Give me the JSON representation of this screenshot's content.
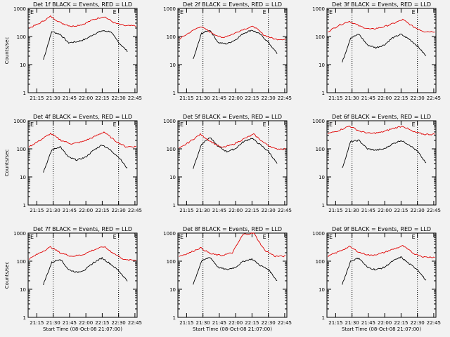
{
  "colors": {
    "background": "#f2f2f2",
    "events": "#000000",
    "lld": "#e00000",
    "axes": "#000000"
  },
  "chart_data": [
    {
      "type": "line",
      "title": "Det 1f BLACK = Events, RED = LLD",
      "xlabel": "",
      "ylabel": "Counts/sec",
      "yscale": "log",
      "ylim": [
        1,
        1000
      ],
      "x_ticks": [
        "21:15",
        "21:30",
        "21:45",
        "22:00",
        "22:15",
        "22:30",
        "22:45"
      ],
      "y_ticks": [
        "1",
        "10",
        "100",
        "1000"
      ],
      "markers": [
        "21:30",
        "22:30"
      ],
      "flags": [
        "E",
        "E"
      ],
      "series": [
        {
          "values": [
            15,
            150,
            120,
            60,
            65,
            80,
            120,
            160,
            150,
            60,
            30
          ]
        },
        {
          "values": [
            200,
            300,
            520,
            300,
            230,
            270,
            400,
            520,
            300,
            240,
            240
          ]
        }
      ]
    },
    {
      "type": "line",
      "title": "Det 2f BLACK = Events, RED = LLD",
      "xlabel": "",
      "ylabel": "",
      "yscale": "log",
      "ylim": [
        1,
        1000
      ],
      "x_ticks": [
        "21:15",
        "21:30",
        "21:45",
        "22:00",
        "22:15",
        "22:30",
        "22:45"
      ],
      "y_ticks": [
        "1",
        "10",
        "100",
        "1000"
      ],
      "markers": [
        "21:30",
        "22:30"
      ],
      "flags": [
        "E",
        "E"
      ],
      "series": [
        {
          "values": [
            15,
            130,
            170,
            60,
            55,
            75,
            130,
            170,
            120,
            60,
            25
          ]
        },
        {
          "values": [
            80,
            140,
            230,
            140,
            90,
            120,
            180,
            230,
            110,
            80,
            80
          ]
        }
      ]
    },
    {
      "type": "line",
      "title": "Det 3f BLACK = Events, RED = LLD",
      "xlabel": "",
      "ylabel": "",
      "yscale": "log",
      "ylim": [
        1,
        1000
      ],
      "x_ticks": [
        "21:15",
        "21:30",
        "21:45",
        "22:00",
        "22:15",
        "22:30",
        "22:45"
      ],
      "y_ticks": [
        "1",
        "10",
        "100",
        "1000"
      ],
      "markers": [
        "21:30",
        "22:30"
      ],
      "flags": [
        "E",
        "E"
      ],
      "series": [
        {
          "values": [
            12,
            90,
            120,
            50,
            40,
            50,
            90,
            120,
            80,
            45,
            20
          ]
        },
        {
          "values": [
            150,
            250,
            350,
            230,
            180,
            210,
            280,
            400,
            220,
            150,
            150
          ]
        }
      ]
    },
    {
      "type": "line",
      "title": "Det 4f BLACK = Events, RED = LLD",
      "xlabel": "",
      "ylabel": "Counts/sec",
      "yscale": "log",
      "ylim": [
        1,
        1000
      ],
      "x_ticks": [
        "21:15",
        "21:30",
        "21:45",
        "22:00",
        "22:15",
        "22:30",
        "22:45"
      ],
      "y_ticks": [
        "1",
        "10",
        "100",
        "1000"
      ],
      "markers": [
        "21:30",
        "22:30"
      ],
      "flags": [
        "E",
        "E"
      ],
      "series": [
        {
          "values": [
            15,
            90,
            120,
            50,
            40,
            50,
            90,
            140,
            90,
            50,
            20
          ]
        },
        {
          "values": [
            120,
            200,
            350,
            200,
            150,
            180,
            260,
            400,
            200,
            120,
            120
          ]
        }
      ]
    },
    {
      "type": "line",
      "title": "Det 5f BLACK = Events, RED = LLD",
      "xlabel": "",
      "ylabel": "",
      "yscale": "log",
      "ylim": [
        1,
        1000
      ],
      "x_ticks": [
        "21:15",
        "21:30",
        "21:45",
        "22:00",
        "22:15",
        "22:30",
        "22:45"
      ],
      "y_ticks": [
        "1",
        "10",
        "100",
        "1000"
      ],
      "markers": [
        "21:30",
        "22:30"
      ],
      "flags": [
        "E",
        "E"
      ],
      "series": [
        {
          "values": [
            20,
            150,
            250,
            120,
            80,
            100,
            180,
            240,
            140,
            80,
            30
          ]
        },
        {
          "values": [
            100,
            180,
            330,
            180,
            110,
            140,
            220,
            330,
            160,
            100,
            100
          ]
        }
      ]
    },
    {
      "type": "line",
      "title": "Det 6f BLACK = Events, RED = LLD",
      "xlabel": "",
      "ylabel": "",
      "yscale": "log",
      "ylim": [
        1,
        1000
      ],
      "x_ticks": [
        "21:15",
        "21:30",
        "21:45",
        "22:00",
        "22:15",
        "22:30",
        "22:45"
      ],
      "y_ticks": [
        "1",
        "10",
        "100",
        "1000"
      ],
      "markers": [
        "21:30",
        "22:30"
      ],
      "flags": [
        "E",
        "E"
      ],
      "series": [
        {
          "values": [
            20,
            180,
            200,
            100,
            90,
            100,
            150,
            200,
            140,
            80,
            30
          ]
        },
        {
          "values": [
            350,
            450,
            650,
            420,
            350,
            390,
            520,
            650,
            400,
            330,
            330
          ]
        }
      ]
    },
    {
      "type": "line",
      "title": "Det 7f BLACK = Events, RED = LLD",
      "xlabel": "Start Time (08-Oct-08 21:07:00)",
      "ylabel": "Counts/sec",
      "yscale": "log",
      "ylim": [
        1,
        1000
      ],
      "x_ticks": [
        "21:15",
        "21:30",
        "21:45",
        "22:00",
        "22:15",
        "22:30",
        "22:45"
      ],
      "y_ticks": [
        "1",
        "10",
        "100",
        "1000"
      ],
      "markers": [
        "21:30",
        "22:30"
      ],
      "flags": [
        "E",
        "E"
      ],
      "series": [
        {
          "values": [
            15,
            90,
            120,
            50,
            40,
            50,
            90,
            130,
            80,
            45,
            20
          ]
        },
        {
          "values": [
            120,
            200,
            320,
            190,
            150,
            170,
            250,
            330,
            180,
            110,
            110
          ]
        }
      ]
    },
    {
      "type": "line",
      "title": "Det 8f BLACK = Events, RED = LLD",
      "xlabel": "Start Time (08-Oct-08 21:07:00)",
      "ylabel": "",
      "yscale": "log",
      "ylim": [
        1,
        1000
      ],
      "x_ticks": [
        "21:15",
        "21:30",
        "21:45",
        "22:00",
        "22:15",
        "22:30",
        "22:45"
      ],
      "y_ticks": [
        "1",
        "10",
        "100",
        "1000"
      ],
      "markers": [
        "21:30",
        "22:30"
      ],
      "flags": [
        "E",
        "E"
      ],
      "series": [
        {
          "values": [
            15,
            100,
            140,
            60,
            50,
            60,
            100,
            120,
            70,
            50,
            20
          ]
        },
        {
          "values": [
            150,
            200,
            300,
            180,
            160,
            200,
            900,
            1000,
            250,
            150,
            150
          ]
        }
      ]
    },
    {
      "type": "line",
      "title": "Det 9f BLACK = Events, RED = LLD",
      "xlabel": "Start Time (08-Oct-08 21:07:00)",
      "ylabel": "",
      "yscale": "log",
      "ylim": [
        1,
        1000
      ],
      "x_ticks": [
        "21:15",
        "21:30",
        "21:45",
        "22:00",
        "22:15",
        "22:30",
        "22:45"
      ],
      "y_ticks": [
        "1",
        "10",
        "100",
        "1000"
      ],
      "markers": [
        "21:30",
        "22:30"
      ],
      "flags": [
        "E",
        "E"
      ],
      "series": [
        {
          "values": [
            15,
            100,
            130,
            60,
            50,
            60,
            100,
            140,
            80,
            50,
            20
          ]
        },
        {
          "values": [
            150,
            220,
            330,
            200,
            160,
            190,
            260,
            350,
            190,
            140,
            140
          ]
        }
      ]
    }
  ]
}
